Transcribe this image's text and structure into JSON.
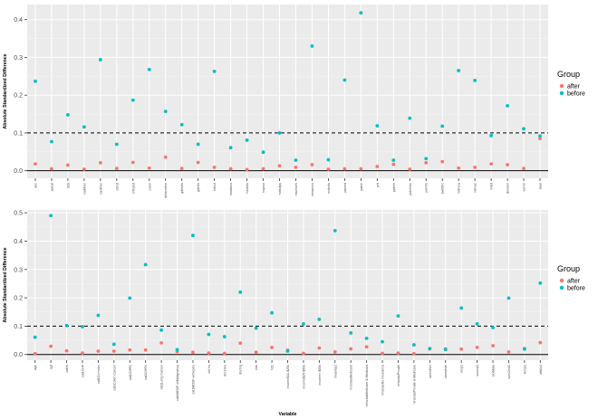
{
  "colors": {
    "panel_bg": "#ebebeb",
    "grid_major": "#ffffff",
    "grid_minor": "#f4f4f4",
    "after": "#f8766d",
    "before": "#00bfc4",
    "threshold_line": "#000000",
    "axis_text": "#4d4d4d"
  },
  "chart_data": [
    {
      "type": "scatter",
      "title": "",
      "xlabel": "Variable",
      "ylabel": "Absolute Standardized Difference",
      "ylim": [
        -0.02,
        0.44
      ],
      "yticks": [
        0.0,
        0.1,
        0.2,
        0.3,
        0.4
      ],
      "ytick_labels": [
        "0.0",
        "0.1",
        "0.2",
        "0.3",
        "0.4"
      ],
      "hlines": [
        {
          "y": 0.1,
          "style": "dashed"
        },
        {
          "y": 0.0,
          "style": "solid"
        }
      ],
      "grid": true,
      "legend": {
        "title": "Group",
        "position": "right",
        "entries": [
          "after",
          "before"
        ]
      },
      "categories": [
        "abc",
        "apical",
        "bbb",
        "caddrec",
        "cardhbc",
        "cbhst",
        "chlnplst",
        "colon",
        "delacretne",
        "gdesrts",
        "gdhrts",
        "hrtnct",
        "hsbidocs",
        "hxracts",
        "hxpnor",
        "malvdpy",
        "mschoes",
        "neoacrns",
        "nndrcts",
        "pacest",
        "patch",
        "pnt",
        "pptnhr",
        "pulmhbc",
        "pwhrts",
        "pwlbthc",
        "redrvca",
        "retinac",
        "rndst",
        "stocken",
        "sunsh",
        "vtasl"
      ],
      "series": [
        {
          "name": "after",
          "values": [
            0.018,
            0.005,
            0.015,
            0.004,
            0.021,
            0.006,
            0.022,
            0.007,
            0.036,
            0.006,
            0.022,
            0.009,
            0.005,
            0.003,
            0.005,
            0.013,
            0.009,
            0.016,
            0.004,
            0.005,
            0.005,
            0.011,
            0.017,
            0.004,
            0.021,
            0.024,
            0.007,
            0.009,
            0.018,
            0.016,
            0.006,
            0.085
          ]
        },
        {
          "name": "before",
          "values": [
            0.237,
            0.077,
            0.148,
            0.116,
            0.294,
            0.07,
            0.187,
            0.268,
            0.157,
            0.122,
            0.07,
            0.263,
            0.061,
            0.081,
            0.049,
            0.1,
            0.028,
            0.33,
            0.029,
            0.24,
            0.418,
            0.119,
            0.028,
            0.139,
            0.032,
            0.118,
            0.265,
            0.239,
            0.093,
            0.172,
            0.111,
            0.092
          ]
        }
      ]
    },
    {
      "type": "scatter",
      "title": "",
      "xlabel": "Variable",
      "ylabel": "Absolute Standardized Difference",
      "ylim": [
        -0.02,
        0.51
      ],
      "yticks": [
        0.0,
        0.1,
        0.2,
        0.3,
        0.4,
        0.5
      ],
      "ytick_labels": [
        "0.0",
        "0.1",
        "0.2",
        "0.3",
        "0.4",
        "0.5"
      ],
      "hlines": [
        {
          "y": 0.1,
          "style": "dashed"
        },
        {
          "y": 0.0,
          "style": "solid"
        }
      ],
      "grid": true,
      "legend": {
        "title": "Group",
        "position": "right",
        "entries": [
          "after",
          "before"
        ]
      },
      "categories": [
        "age",
        "apt",
        "cathb",
        "cat1CHF",
        "cat1Cirrhosis",
        "cat1Colon Cancer",
        "cat1COPD",
        "cat1CHFN",
        "cat1Lung Cancer",
        "cat1MOSF w/Malignancy",
        "cat1MOSF w/Sepsis",
        "chf.hs",
        "dnr1Yes",
        "dschrg",
        "edu",
        "hrt1",
        "income$11-$25k",
        "income$25-$50k",
        "income&gt; $50k",
        "meanbp1",
        "ninsclasMedicare",
        "ninsclasMedicare &amp; Medicaid",
        "ninsclasNo insurance",
        "ninsclasPrivate",
        "ninsclasPrivate &amp; Medicare",
        "raceother",
        "racewhite",
        "resp1",
        "scoma1",
        "sexMale",
        "surv2md1",
        "temp1",
        "wtkilo1"
      ],
      "series": [
        {
          "name": "after",
          "values": [
            0.003,
            0.029,
            0.013,
            0.005,
            0.012,
            0.012,
            0.016,
            0.016,
            0.041,
            0.01,
            0.008,
            0.005,
            0.004,
            0.04,
            0.008,
            0.025,
            0.015,
            0.004,
            0.023,
            0.009,
            0.02,
            0.027,
            0.004,
            0.005,
            0.003,
            0.02,
            0.02,
            0.019,
            0.025,
            0.031,
            0.009,
            0.021,
            0.042
          ]
        },
        {
          "name": "before",
          "values": [
            0.061,
            0.49,
            0.102,
            0.098,
            0.138,
            0.036,
            0.199,
            0.317,
            0.086,
            0.017,
            0.42,
            0.071,
            0.063,
            0.22,
            0.093,
            0.147,
            0.012,
            0.108,
            0.124,
            0.437,
            0.076,
            0.057,
            0.045,
            0.136,
            0.034,
            0.021,
            0.017,
            0.164,
            0.108,
            0.095,
            0.199,
            0.019,
            0.252
          ]
        }
      ]
    }
  ]
}
